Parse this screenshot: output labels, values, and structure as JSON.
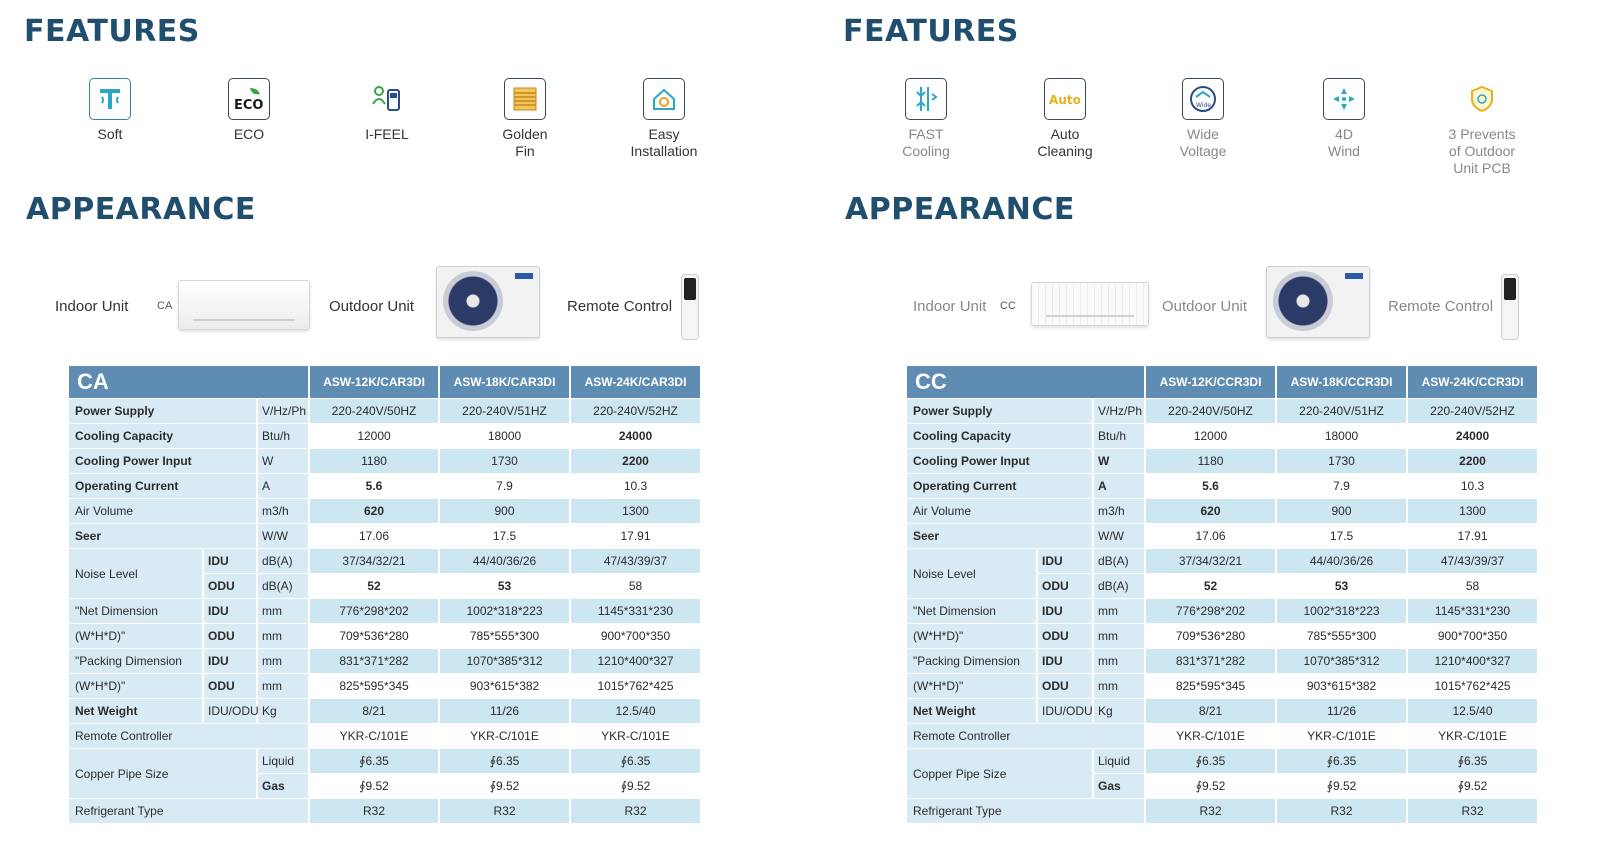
{
  "left": {
    "features_title": "FEATURES",
    "features": [
      {
        "label": "Soft",
        "icon": "soft-icon"
      },
      {
        "label": "ECO",
        "icon": "eco-icon"
      },
      {
        "label": "I-FEEL",
        "icon": "i-feel-icon"
      },
      {
        "label": "Golden Fin",
        "icon": "golden-fin-icon"
      },
      {
        "label": "Easy Installation",
        "icon": "easy-installation-icon"
      }
    ],
    "appearance_title": "APPEARANCE",
    "appearance": {
      "indoor_label": "Indoor Unit",
      "model_code": "CA",
      "outdoor_label": "Outdoor Unit",
      "remote_label": "Remote Control"
    },
    "table": {
      "model": "CA",
      "models": [
        "ASW-12K/CAR3DI",
        "ASW-18K/CAR3DI",
        "ASW-24K/CAR3DI"
      ]
    }
  },
  "right": {
    "features_title": "FEATURES",
    "features": [
      {
        "label": "FAST Cooling",
        "icon": "fast-cooling-icon"
      },
      {
        "label": "Auto Cleaning",
        "icon": "auto-cleaning-icon"
      },
      {
        "label": "Wide Voltage",
        "icon": "wide-voltage-icon"
      },
      {
        "label": "4D Wind",
        "icon": "4d-wind-icon"
      },
      {
        "label": "3 Prevents of Outdoor Unit PCB",
        "icon": "shield-icon"
      }
    ],
    "icon_text": {
      "auto": "Auto",
      "wide": "Wide"
    },
    "appearance_title": "APPEARANCE",
    "appearance": {
      "indoor_label": "Indoor Unit",
      "model_code": "CC",
      "outdoor_label": "Outdoor Unit",
      "remote_label": "Remote Control"
    },
    "table": {
      "model": "CC",
      "models": [
        "ASW-12K/CCR3DI",
        "ASW-18K/CCR3DI",
        "ASW-24K/CCR3DI"
      ]
    }
  },
  "spec": {
    "power_supply": {
      "label": "Power Supply",
      "unit": "V/Hz/Ph",
      "values": [
        "220-240V/50HZ",
        "220-240V/51HZ",
        "220-240V/52HZ"
      ]
    },
    "cooling_capacity": {
      "label": "Cooling Capacity",
      "unit": "Btu/h",
      "values": [
        "12000",
        "18000",
        "24000"
      ]
    },
    "cooling_power": {
      "label": "Cooling Power Input",
      "unit": "W",
      "values": [
        "1180",
        "1730",
        "2200"
      ]
    },
    "operating_current": {
      "label": "Operating Current",
      "unit": "A",
      "values": [
        "5.6",
        "7.9",
        "10.3"
      ]
    },
    "air_volume": {
      "label": "Air Volume",
      "unit": "m3/h",
      "values": [
        "620",
        "900",
        "1300"
      ]
    },
    "seer": {
      "label": "Seer",
      "unit": "W/W",
      "values": [
        "17.06",
        "17.5",
        "17.91"
      ]
    },
    "noise_level": {
      "label": "Noise Level",
      "idu": {
        "sub": "IDU",
        "unit": "dB(A)",
        "values": [
          "37/34/32/21",
          "44/40/36/26",
          "47/43/39/37"
        ]
      },
      "odu": {
        "sub": "ODU",
        "unit": "dB(A)",
        "values": [
          "52",
          "53",
          "58"
        ]
      }
    },
    "net_dimension": {
      "label1": "\"Net Dimension",
      "label2": "(W*H*D)\"",
      "idu": {
        "sub": "IDU",
        "unit": "mm",
        "values": [
          "776*298*202",
          "1002*318*223",
          "1145*331*230"
        ]
      },
      "odu": {
        "sub": "ODU",
        "unit": "mm",
        "values": [
          "709*536*280",
          "785*555*300",
          "900*700*350"
        ]
      }
    },
    "packing_dimension": {
      "label1": "\"Packing Dimension",
      "label2": "(W*H*D)\"",
      "idu": {
        "sub": "IDU",
        "unit": "mm",
        "values": [
          "831*371*282",
          "1070*385*312",
          "1210*400*327"
        ]
      },
      "odu": {
        "sub": "ODU",
        "unit": "mm",
        "values": [
          "825*595*345",
          "903*615*382",
          "1015*762*425"
        ]
      }
    },
    "net_weight": {
      "label": "Net Weight",
      "sub": "IDU/ODU",
      "unit": "Kg",
      "values": [
        "8/21",
        "11/26",
        "12.5/40"
      ]
    },
    "remote_controller": {
      "label": "Remote Controller",
      "values": [
        "YKR-C/101E",
        "YKR-C/101E",
        "YKR-C/101E"
      ]
    },
    "copper_pipe": {
      "label": "Copper Pipe Size",
      "liquid": {
        "sub": "Liquid",
        "values": [
          "∮6.35",
          "∮6.35",
          "∮6.35"
        ]
      },
      "gas": {
        "sub": "Gas",
        "values": [
          "∮9.52",
          "∮9.52",
          "∮9.52"
        ]
      }
    },
    "refrigerant": {
      "label": "Refrigerant Type",
      "values": [
        "R32",
        "R32",
        "R32"
      ]
    }
  }
}
